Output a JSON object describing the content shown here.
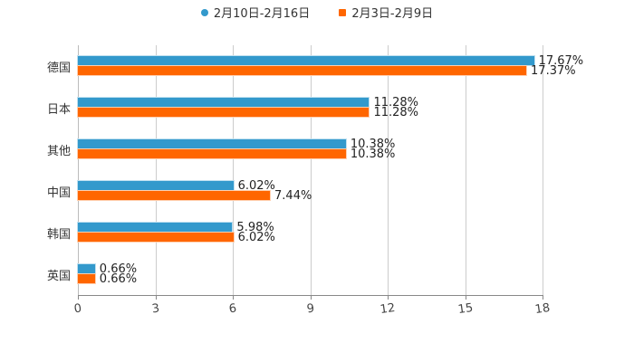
{
  "legend": [
    {
      "label": "2月10日-2月16日",
      "color": "#3399cc"
    },
    {
      "label": "2月3日-2月9日",
      "color": "#ff6600"
    }
  ],
  "chart_data": {
    "type": "bar",
    "orientation": "horizontal",
    "categories": [
      "德国",
      "日本",
      "其他",
      "中国",
      "韩国",
      "英国"
    ],
    "series": [
      {
        "name": "2月10日-2月16日",
        "color": "#3399cc",
        "values": [
          17.67,
          11.28,
          10.38,
          6.02,
          5.98,
          0.66
        ],
        "labels": [
          "17.67%",
          "11.28%",
          "10.38%",
          "6.02%",
          "5.98%",
          "0.66%"
        ]
      },
      {
        "name": "2月3日-2月9日",
        "color": "#ff6600",
        "values": [
          17.37,
          11.28,
          10.38,
          7.44,
          6.02,
          0.66
        ],
        "labels": [
          "17.37%",
          "11.28%",
          "10.38%",
          "7.44%",
          "6.02%",
          "0.66%"
        ]
      }
    ],
    "xticks": [
      "0",
      "3",
      "6",
      "9",
      "12",
      "15",
      "18"
    ],
    "xlim": [
      0,
      18
    ],
    "grid": true,
    "legend_position": "top",
    "title": "",
    "xlabel": "",
    "ylabel": ""
  }
}
